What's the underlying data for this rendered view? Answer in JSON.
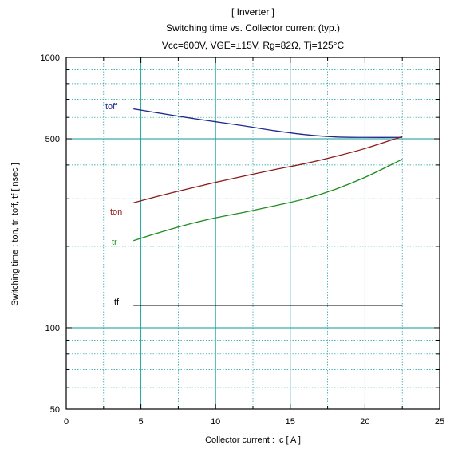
{
  "chart_data": {
    "type": "line",
    "title": "[ Inverter ]",
    "subtitle": "Switching time  vs.  Collector current  (typ.)",
    "conditions": "Vcc=600V, VGE=±15V, Rg=82Ω, Tj=125°C",
    "xlabel": "Collector current  :  Ic  [ A ]",
    "ylabel": "Switching time  :  ton, tr, toff, tf  [ nsec ]",
    "xlim": [
      0,
      25
    ],
    "ylim": [
      50,
      1000
    ],
    "y_scale": "log",
    "grid": true,
    "x_ticks": [
      "0",
      "5",
      "10",
      "15",
      "20",
      "25"
    ],
    "y_ticks": [
      "50",
      "100",
      "500",
      "1000"
    ],
    "series": [
      {
        "name": "toff",
        "color": "#1f2a8c",
        "x": [
          4.5,
          6,
          8,
          10,
          12,
          14,
          16,
          18,
          20,
          22.5
        ],
        "y": [
          645,
          625,
          600,
          578,
          557,
          535,
          518,
          508,
          506,
          506
        ]
      },
      {
        "name": "ton",
        "color": "#8b1a1a",
        "x": [
          4.5,
          6,
          8,
          10,
          12,
          14,
          16,
          18,
          20,
          22.5
        ],
        "y": [
          290,
          305,
          325,
          345,
          365,
          385,
          405,
          430,
          460,
          510
        ]
      },
      {
        "name": "tr",
        "color": "#1e8c1e",
        "x": [
          4.5,
          6,
          8,
          10,
          12,
          14,
          16,
          18,
          20,
          22.5
        ],
        "y": [
          210,
          223,
          240,
          255,
          268,
          283,
          300,
          325,
          360,
          420
        ]
      },
      {
        "name": "tf",
        "color": "#000000",
        "x": [
          4.5,
          22.5
        ],
        "y": [
          121,
          121
        ]
      }
    ]
  }
}
